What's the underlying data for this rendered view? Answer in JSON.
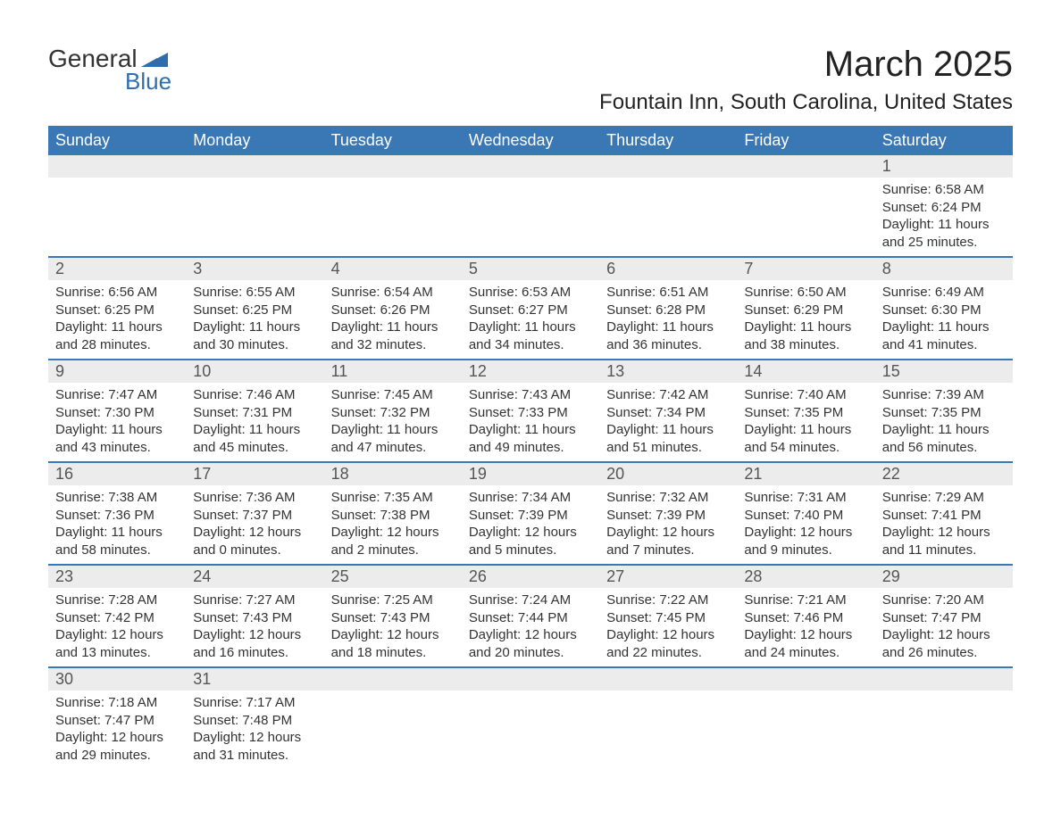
{
  "logo": {
    "word1": "General",
    "word2": "Blue",
    "shape_color": "#2f6dab"
  },
  "title": "March 2025",
  "location": "Fountain Inn, South Carolina, United States",
  "colors": {
    "header_bg": "#3a77b5",
    "header_text": "#ffffff",
    "daynum_bg": "#ececec",
    "divider": "#3a77b5",
    "text": "#333333",
    "background": "#ffffff"
  },
  "day_headers": [
    "Sunday",
    "Monday",
    "Tuesday",
    "Wednesday",
    "Thursday",
    "Friday",
    "Saturday"
  ],
  "weeks": [
    {
      "nums": [
        "",
        "",
        "",
        "",
        "",
        "",
        "1"
      ],
      "details": [
        null,
        null,
        null,
        null,
        null,
        null,
        {
          "sunrise": "6:58 AM",
          "sunset": "6:24 PM",
          "daylight": "11 hours and 25 minutes."
        }
      ]
    },
    {
      "nums": [
        "2",
        "3",
        "4",
        "5",
        "6",
        "7",
        "8"
      ],
      "details": [
        {
          "sunrise": "6:56 AM",
          "sunset": "6:25 PM",
          "daylight": "11 hours and 28 minutes."
        },
        {
          "sunrise": "6:55 AM",
          "sunset": "6:25 PM",
          "daylight": "11 hours and 30 minutes."
        },
        {
          "sunrise": "6:54 AM",
          "sunset": "6:26 PM",
          "daylight": "11 hours and 32 minutes."
        },
        {
          "sunrise": "6:53 AM",
          "sunset": "6:27 PM",
          "daylight": "11 hours and 34 minutes."
        },
        {
          "sunrise": "6:51 AM",
          "sunset": "6:28 PM",
          "daylight": "11 hours and 36 minutes."
        },
        {
          "sunrise": "6:50 AM",
          "sunset": "6:29 PM",
          "daylight": "11 hours and 38 minutes."
        },
        {
          "sunrise": "6:49 AM",
          "sunset": "6:30 PM",
          "daylight": "11 hours and 41 minutes."
        }
      ]
    },
    {
      "nums": [
        "9",
        "10",
        "11",
        "12",
        "13",
        "14",
        "15"
      ],
      "details": [
        {
          "sunrise": "7:47 AM",
          "sunset": "7:30 PM",
          "daylight": "11 hours and 43 minutes."
        },
        {
          "sunrise": "7:46 AM",
          "sunset": "7:31 PM",
          "daylight": "11 hours and 45 minutes."
        },
        {
          "sunrise": "7:45 AM",
          "sunset": "7:32 PM",
          "daylight": "11 hours and 47 minutes."
        },
        {
          "sunrise": "7:43 AM",
          "sunset": "7:33 PM",
          "daylight": "11 hours and 49 minutes."
        },
        {
          "sunrise": "7:42 AM",
          "sunset": "7:34 PM",
          "daylight": "11 hours and 51 minutes."
        },
        {
          "sunrise": "7:40 AM",
          "sunset": "7:35 PM",
          "daylight": "11 hours and 54 minutes."
        },
        {
          "sunrise": "7:39 AM",
          "sunset": "7:35 PM",
          "daylight": "11 hours and 56 minutes."
        }
      ]
    },
    {
      "nums": [
        "16",
        "17",
        "18",
        "19",
        "20",
        "21",
        "22"
      ],
      "details": [
        {
          "sunrise": "7:38 AM",
          "sunset": "7:36 PM",
          "daylight": "11 hours and 58 minutes."
        },
        {
          "sunrise": "7:36 AM",
          "sunset": "7:37 PM",
          "daylight": "12 hours and 0 minutes."
        },
        {
          "sunrise": "7:35 AM",
          "sunset": "7:38 PM",
          "daylight": "12 hours and 2 minutes."
        },
        {
          "sunrise": "7:34 AM",
          "sunset": "7:39 PM",
          "daylight": "12 hours and 5 minutes."
        },
        {
          "sunrise": "7:32 AM",
          "sunset": "7:39 PM",
          "daylight": "12 hours and 7 minutes."
        },
        {
          "sunrise": "7:31 AM",
          "sunset": "7:40 PM",
          "daylight": "12 hours and 9 minutes."
        },
        {
          "sunrise": "7:29 AM",
          "sunset": "7:41 PM",
          "daylight": "12 hours and 11 minutes."
        }
      ]
    },
    {
      "nums": [
        "23",
        "24",
        "25",
        "26",
        "27",
        "28",
        "29"
      ],
      "details": [
        {
          "sunrise": "7:28 AM",
          "sunset": "7:42 PM",
          "daylight": "12 hours and 13 minutes."
        },
        {
          "sunrise": "7:27 AM",
          "sunset": "7:43 PM",
          "daylight": "12 hours and 16 minutes."
        },
        {
          "sunrise": "7:25 AM",
          "sunset": "7:43 PM",
          "daylight": "12 hours and 18 minutes."
        },
        {
          "sunrise": "7:24 AM",
          "sunset": "7:44 PM",
          "daylight": "12 hours and 20 minutes."
        },
        {
          "sunrise": "7:22 AM",
          "sunset": "7:45 PM",
          "daylight": "12 hours and 22 minutes."
        },
        {
          "sunrise": "7:21 AM",
          "sunset": "7:46 PM",
          "daylight": "12 hours and 24 minutes."
        },
        {
          "sunrise": "7:20 AM",
          "sunset": "7:47 PM",
          "daylight": "12 hours and 26 minutes."
        }
      ]
    },
    {
      "nums": [
        "30",
        "31",
        "",
        "",
        "",
        "",
        ""
      ],
      "details": [
        {
          "sunrise": "7:18 AM",
          "sunset": "7:47 PM",
          "daylight": "12 hours and 29 minutes."
        },
        {
          "sunrise": "7:17 AM",
          "sunset": "7:48 PM",
          "daylight": "12 hours and 31 minutes."
        },
        null,
        null,
        null,
        null,
        null
      ]
    }
  ],
  "labels": {
    "sunrise": "Sunrise: ",
    "sunset": "Sunset: ",
    "daylight": "Daylight: "
  }
}
